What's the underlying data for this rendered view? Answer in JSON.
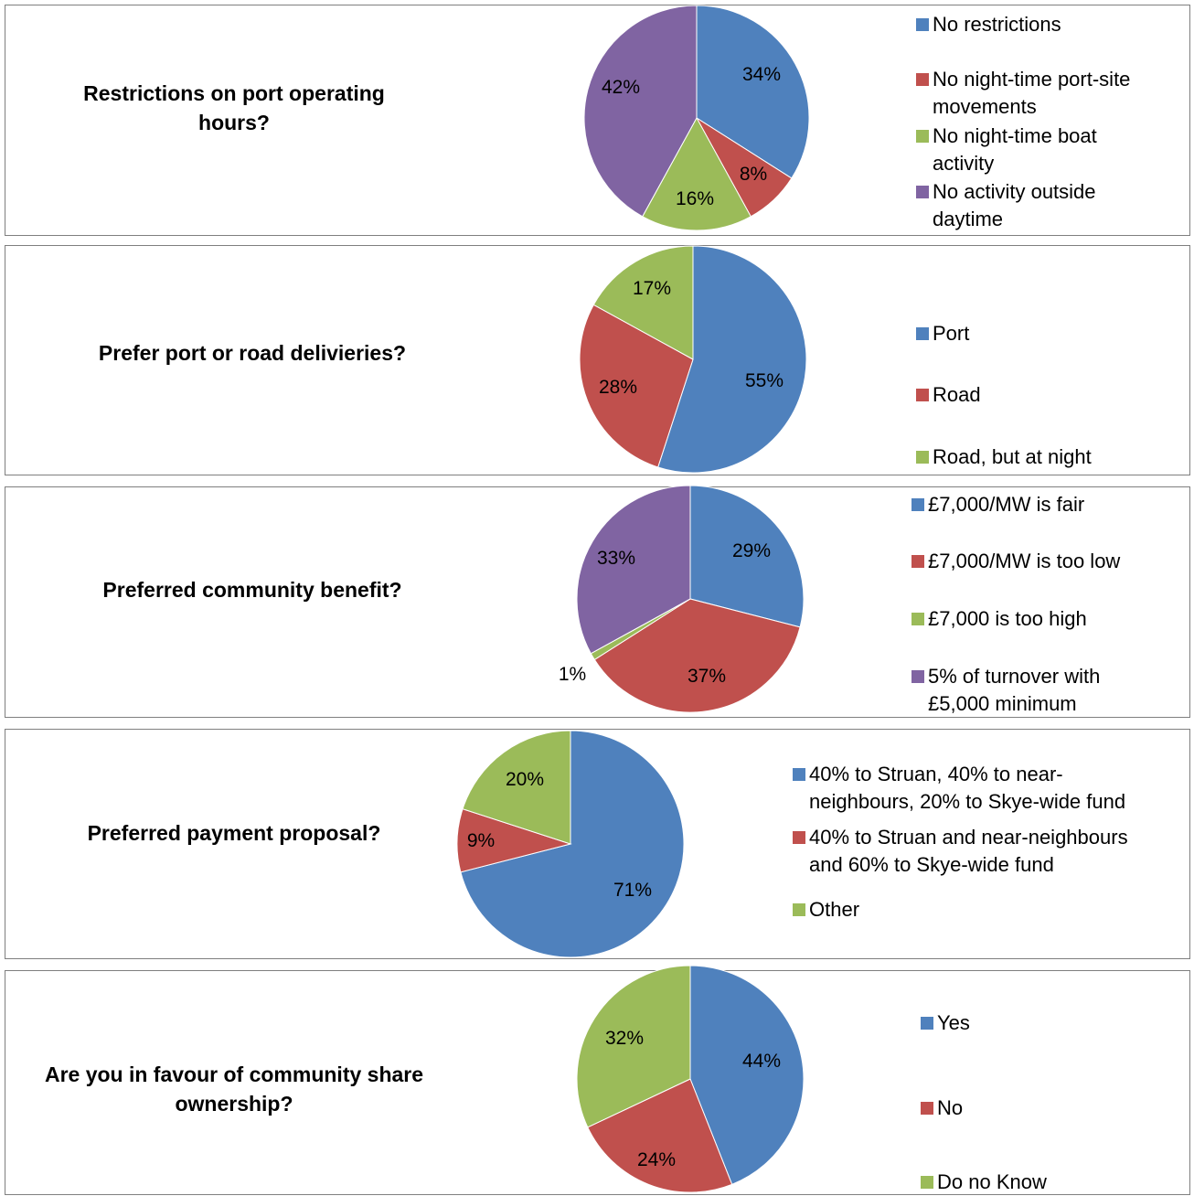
{
  "chart_data": [
    {
      "type": "pie",
      "question": "Restrictions on port operating hours?",
      "categories": [
        "No restrictions",
        "No night-time port-site movements",
        "No night-time boat activity",
        "No activity outside daytime"
      ],
      "values": [
        34,
        8,
        16,
        42
      ],
      "labels": [
        "34%",
        "8%",
        "16%",
        "42%"
      ],
      "colors": [
        "#4f81bd",
        "#c0504d",
        "#9bbb59",
        "#8064a2"
      ],
      "legend_lines": [
        [
          "No restrictions"
        ],
        [
          "No night-time port-site",
          "movements"
        ],
        [
          "No night-time boat",
          "activity"
        ],
        [
          "No activity outside",
          "daytime"
        ]
      ]
    },
    {
      "type": "pie",
      "question": "Prefer port or road delivieries?",
      "categories": [
        "Port",
        "Road",
        "Road, but at night"
      ],
      "values": [
        55,
        28,
        17
      ],
      "labels": [
        "55%",
        "28%",
        "17%"
      ],
      "colors": [
        "#4f81bd",
        "#c0504d",
        "#9bbb59"
      ],
      "legend_lines": [
        [
          "Port"
        ],
        [
          "Road"
        ],
        [
          "Road, but at night"
        ]
      ]
    },
    {
      "type": "pie",
      "question": "Preferred community benefit?",
      "categories": [
        "£7,000/MW is fair",
        "£7,000/MW is too low",
        "£7,000 is too high",
        "5% of turnover with £5,000 minimum"
      ],
      "values": [
        29,
        37,
        1,
        33
      ],
      "labels": [
        "29%",
        "37%",
        "1%",
        "33%"
      ],
      "colors": [
        "#4f81bd",
        "#c0504d",
        "#9bbb59",
        "#8064a2"
      ],
      "legend_lines": [
        [
          "£7,000/MW is fair"
        ],
        [
          "£7,000/MW is too low"
        ],
        [
          "£7,000 is too high"
        ],
        [
          "5% of turnover with",
          "£5,000 minimum"
        ]
      ]
    },
    {
      "type": "pie",
      "question": "Preferred payment proposal?",
      "categories": [
        "40% to Struan, 40% to near-neighbours, 20% to Skye-wide fund",
        "40% to Struan and near-neighbours and 60% to Skye-wide fund",
        "Other"
      ],
      "values": [
        71,
        9,
        20
      ],
      "labels": [
        "71%",
        "9%",
        "20%"
      ],
      "colors": [
        "#4f81bd",
        "#c0504d",
        "#9bbb59"
      ],
      "legend_lines": [
        [
          "40% to Struan, 40% to near-",
          "neighbours, 20% to Skye-wide fund"
        ],
        [
          "40% to Struan and near-neighbours",
          "and 60% to Skye-wide fund"
        ],
        [
          "Other"
        ]
      ]
    },
    {
      "type": "pie",
      "question": "Are you in favour of community share ownership?",
      "categories": [
        "Yes",
        "No",
        "Do no Know"
      ],
      "values": [
        44,
        24,
        32
      ],
      "labels": [
        "44%",
        "24%",
        "32%"
      ],
      "colors": [
        "#4f81bd",
        "#c0504d",
        "#9bbb59"
      ],
      "legend_lines": [
        [
          "Yes"
        ],
        [
          "No"
        ],
        [
          "Do no Know"
        ]
      ]
    }
  ],
  "questions": {
    "q0": "Restrictions on port operating hours?",
    "q1": "Prefer port or road delivieries?",
    "q2": "Preferred community benefit?",
    "q3": "Preferred payment proposal?",
    "q4": "Are you in favour of community share ownership?"
  }
}
